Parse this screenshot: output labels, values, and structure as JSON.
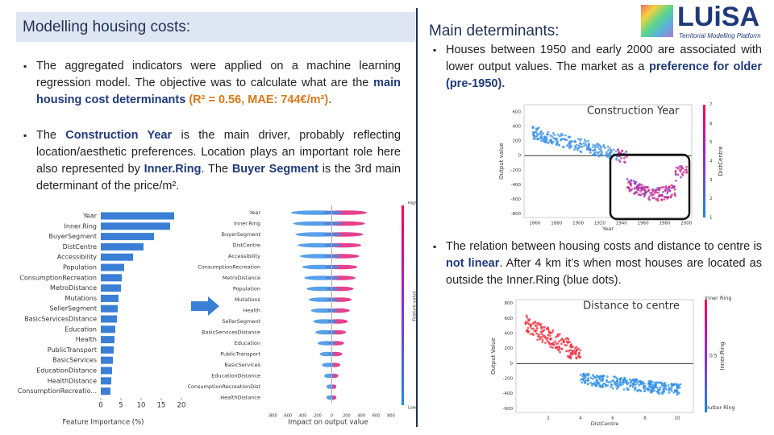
{
  "left_header": "Modelling housing costs:",
  "right_header": "Main determinants:",
  "logo": {
    "name": "LUiSA",
    "tagline": "Territorial Modelling Platform"
  },
  "left_bullets": [
    [
      {
        "text": "The aggregated indicators were applied on a machine learning regression model. The objective was to calculate what are the ",
        "style": "plain"
      },
      {
        "text": "main housing cost determinants",
        "style": "bold-blue"
      },
      {
        "text": " (R² = 0.56, MAE: 744€/m²)",
        "style": "accent"
      },
      {
        "text": ".",
        "style": "plain"
      }
    ],
    [
      {
        "text": "The ",
        "style": "plain"
      },
      {
        "text": "Construction Year",
        "style": "bold-blue"
      },
      {
        "text": " is the main driver, probably reflecting location/aesthetic preferences. Location plays an important role here also represented by ",
        "style": "plain"
      },
      {
        "text": "Inner.Ring",
        "style": "bold-blue"
      },
      {
        "text": ". The ",
        "style": "plain"
      },
      {
        "text": "Buyer Segment",
        "style": "bold-blue"
      },
      {
        "text": " is the 3rd main determinant of the price/m².",
        "style": "plain"
      }
    ]
  ],
  "right_bullets": [
    [
      {
        "text": "Houses between 1950 and early 2000 are associated with lower output values. The market as a ",
        "style": "plain"
      },
      {
        "text": "preference",
        "style": "bold-blue"
      },
      {
        "text": " for older (pre-1950).",
        "style": "bold-blue"
      }
    ],
    [
      {
        "text": "The relation between housing costs and distance to centre is ",
        "style": "plain"
      },
      {
        "text": "not linear",
        "style": "bold-blue"
      },
      {
        "text": ". After 4 km it’s when most houses are located as outside the Inner.Ring (blue dots).",
        "style": "plain"
      }
    ]
  ],
  "importance_chart": {
    "type": "bar",
    "categories": [
      "Year",
      "Inner.Ring",
      "BuyerSegment",
      "DistCentre",
      "Accessibility",
      "Population",
      "ConsumptionRecreation",
      "MetroDistance",
      "Mutations",
      "SellerSegment",
      "BasicServicesDistance",
      "Education",
      "Health",
      "PublicTransport",
      "BasicServices",
      "EducationDistance",
      "HealthDistance",
      "ConsumptionRecreatio..."
    ],
    "values": [
      18.2,
      17.2,
      13.2,
      10.6,
      8,
      5.8,
      5.2,
      5,
      4.4,
      4.2,
      4,
      3.6,
      3.4,
      3.2,
      3,
      2.8,
      2.6,
      2.4
    ],
    "color": "#3a7fd5",
    "xlim": [
      0,
      22
    ],
    "xticks": [
      0,
      5,
      10,
      15,
      20
    ],
    "xlabel": "Feature Importance (%)"
  },
  "shap_chart": {
    "type": "beeswarm",
    "features": [
      "Year",
      "Inner.Ring",
      "BuyerSegment",
      "DistCentre",
      "Accessibility",
      "ConsumptionRecreation",
      "MetroDistance",
      "Population",
      "Mutations",
      "Health",
      "SellerSegment",
      "BasicServicesDistance",
      "Education",
      "PublicTransport",
      "BasicServices",
      "EducationDistance",
      "ConsumptionRecreationDist",
      "HealthDistance"
    ],
    "xlim": [
      -850,
      850
    ],
    "xticks": [
      -800,
      -600,
      -400,
      -200,
      0,
      200,
      400,
      600,
      800
    ],
    "xlabel": "Impact on output value",
    "colorbar_label": "Feature value",
    "colorbar_high": "High",
    "colorbar_low": "Low"
  },
  "year_chart": {
    "type": "scatter",
    "title": "Construction Year",
    "xlabel": "Year",
    "ylabel": "Output value",
    "xlim": [
      1850,
      2005
    ],
    "xticks": [
      1860,
      1880,
      1900,
      1920,
      1940,
      1960,
      1980,
      2000
    ],
    "ylim": [
      -850,
      700
    ],
    "yticks": [
      600,
      400,
      200,
      0,
      -200,
      -400,
      -600,
      -800
    ],
    "colorbar_label": "DistCentre",
    "colorbar_ticks": [
      1,
      2,
      3,
      4,
      5,
      6,
      7
    ]
  },
  "distance_chart": {
    "type": "scatter",
    "title": "Distance to centre",
    "xlabel": "DistCentre",
    "ylabel": "Output Value",
    "xlim": [
      0,
      11
    ],
    "xticks": [
      2,
      4,
      6,
      8,
      10
    ],
    "ylim": [
      -650,
      850
    ],
    "yticks": [
      800,
      600,
      400,
      200,
      0,
      -200,
      -400,
      -600
    ],
    "colorbar_label": "Inner.Ring",
    "colorbar_top": "Inner Ring",
    "colorbar_mid": "0.5",
    "colorbar_bottom": "Outter Ring"
  }
}
